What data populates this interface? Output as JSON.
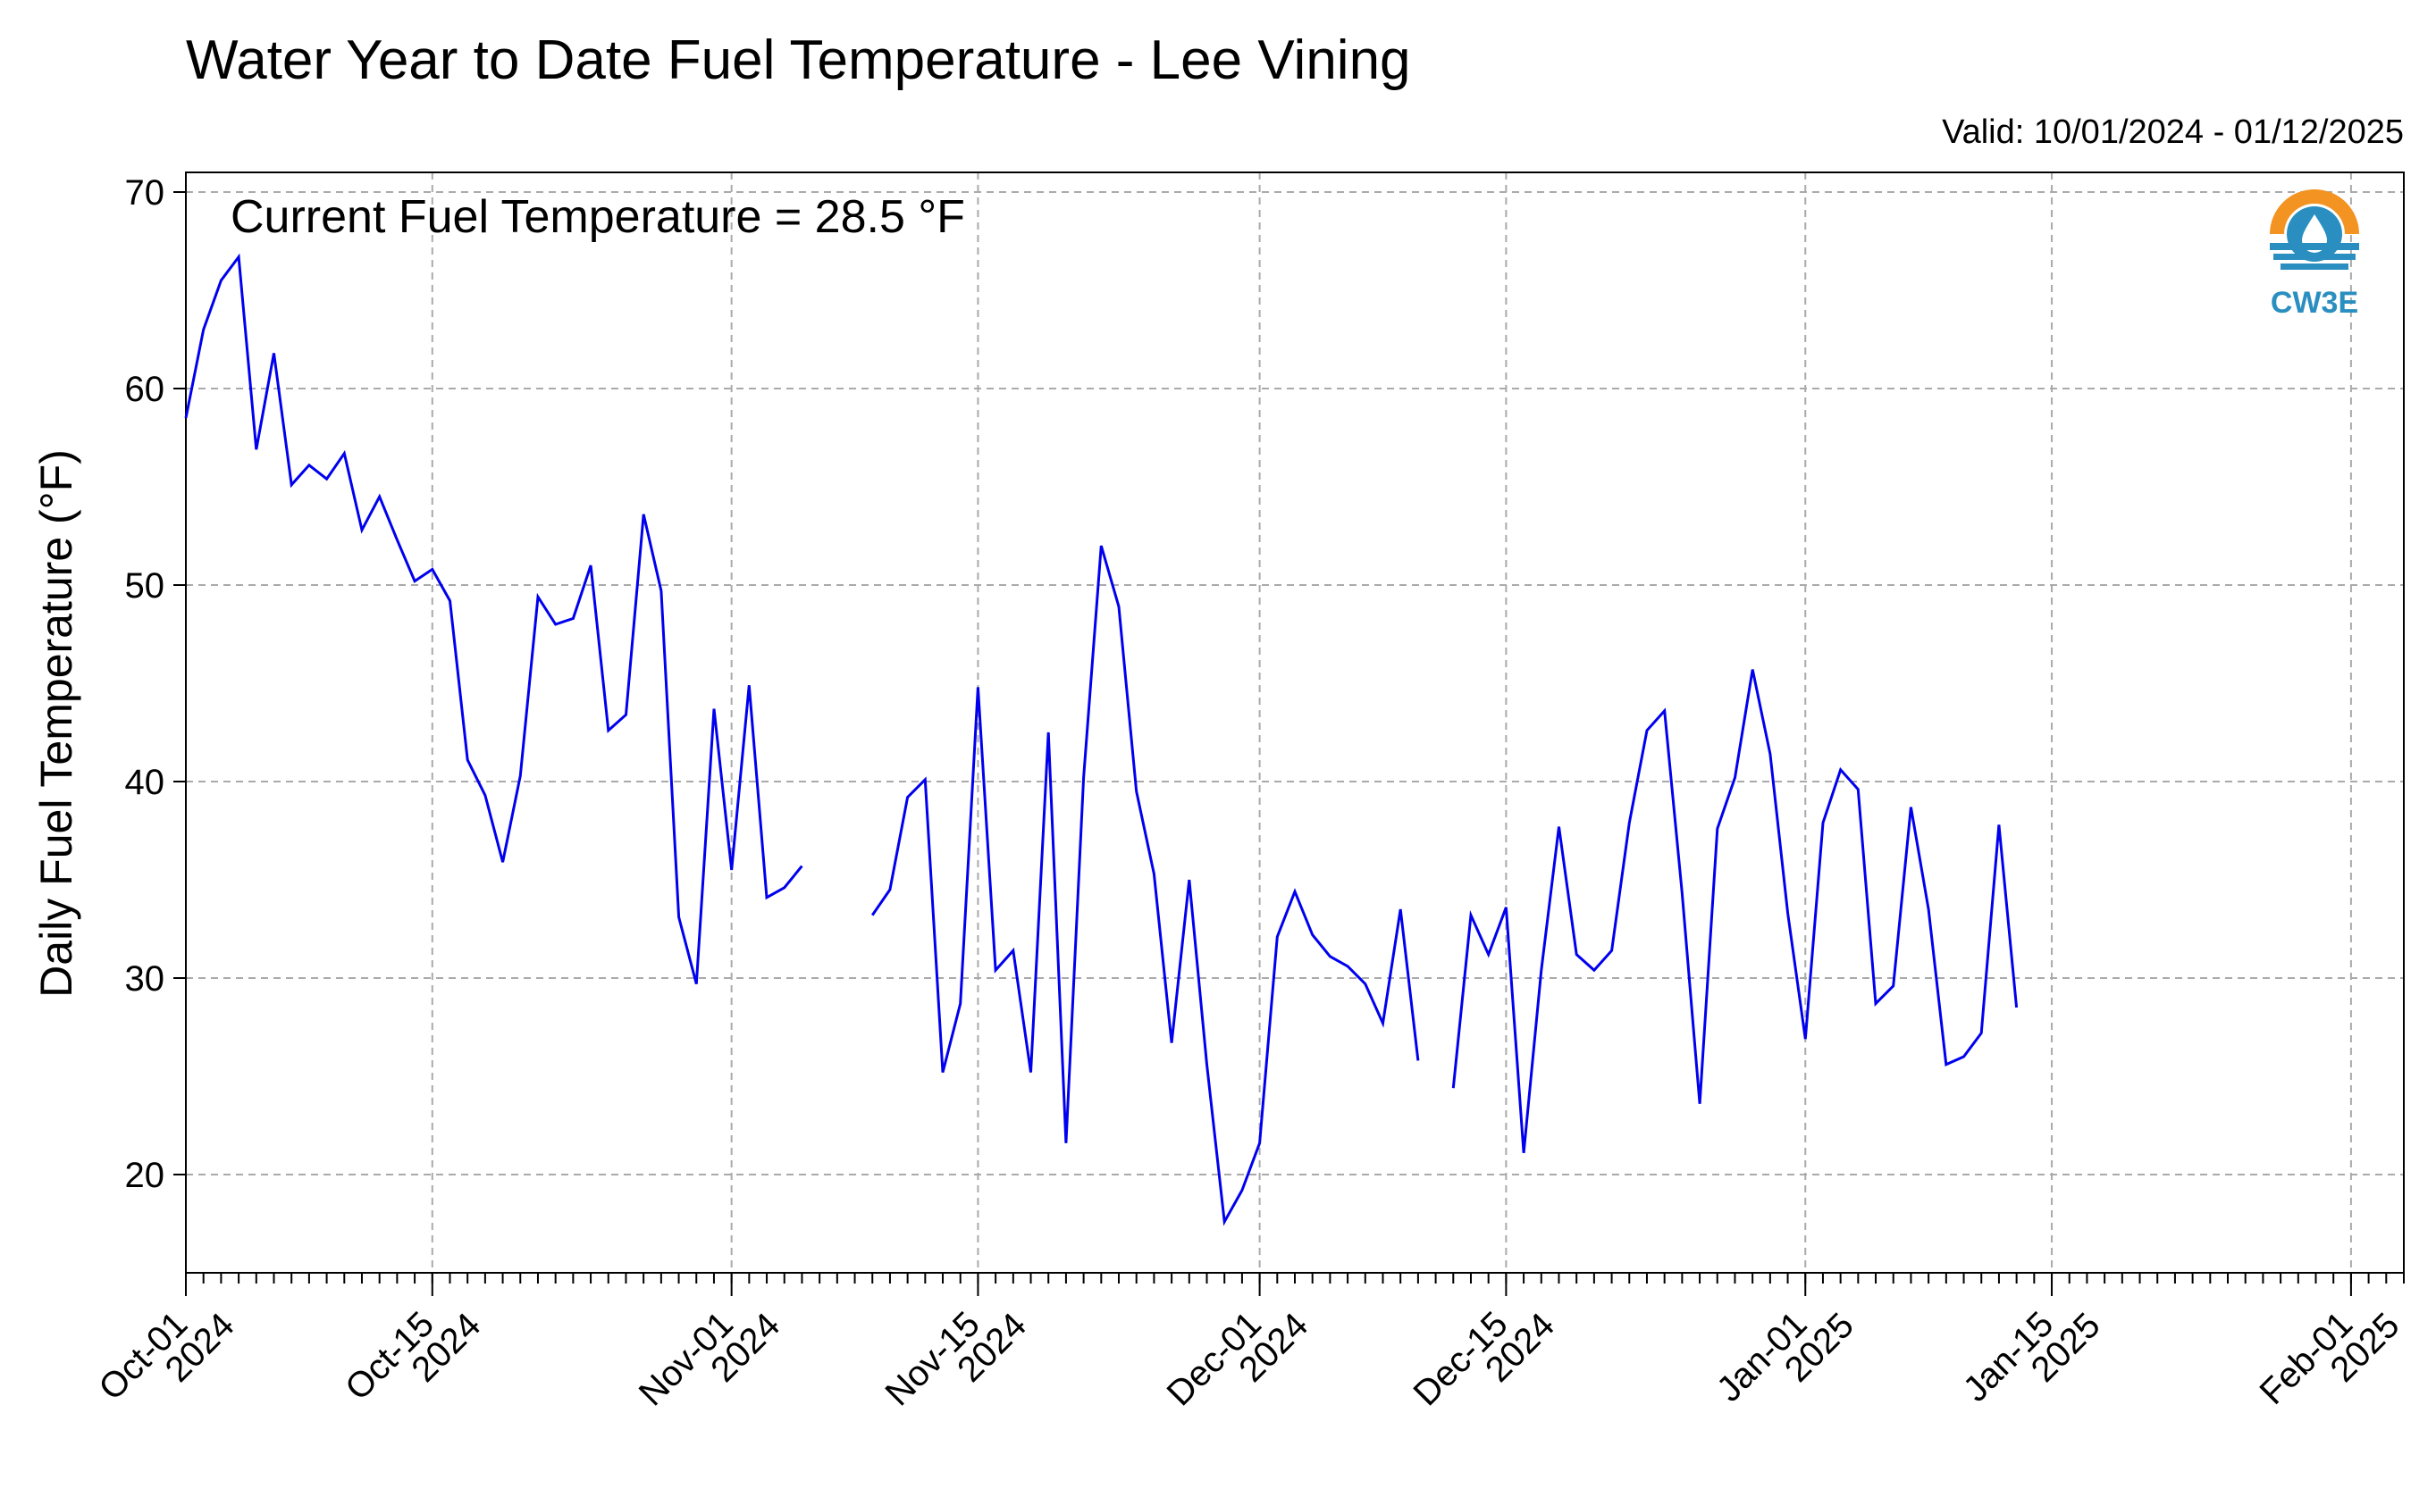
{
  "chart_data": {
    "type": "line",
    "title": "Water Year to Date Fuel Temperature - Lee Vining",
    "subtitle": "Valid: 10/01/2024 - 01/12/2025",
    "annotation": "Current Fuel Temperature = 28.5  °F",
    "xlabel": "",
    "ylabel": "Daily Fuel Temperature (°F)",
    "ylim": [
      15,
      71
    ],
    "xlim": [
      "2024-10-01",
      "2025-02-04"
    ],
    "yticks": [
      20,
      30,
      40,
      50,
      60,
      70
    ],
    "xticks": [
      {
        "date": "2024-10-01",
        "line1": "Oct-01",
        "line2": "2024"
      },
      {
        "date": "2024-10-15",
        "line1": "Oct-15",
        "line2": "2024"
      },
      {
        "date": "2024-11-01",
        "line1": "Nov-01",
        "line2": "2024"
      },
      {
        "date": "2024-11-15",
        "line1": "Nov-15",
        "line2": "2024"
      },
      {
        "date": "2024-12-01",
        "line1": "Dec-01",
        "line2": "2024"
      },
      {
        "date": "2024-12-15",
        "line1": "Dec-15",
        "line2": "2024"
      },
      {
        "date": "2025-01-01",
        "line1": "Jan-01",
        "line2": "2025"
      },
      {
        "date": "2025-01-15",
        "line1": "Jan-15",
        "line2": "2025"
      },
      {
        "date": "2025-02-01",
        "line1": "Feb-01",
        "line2": "2025"
      }
    ],
    "grid": true,
    "line_color": "#0000ee",
    "start_date": "2024-10-01",
    "values": [
      58.5,
      63.0,
      65.5,
      66.7,
      56.9,
      61.8,
      55.1,
      56.1,
      55.4,
      56.7,
      52.8,
      54.5,
      52.3,
      50.2,
      50.8,
      49.2,
      41.1,
      39.3,
      35.9,
      40.3,
      49.4,
      48.0,
      48.3,
      51.0,
      42.6,
      43.4,
      53.6,
      49.7,
      33.1,
      29.7,
      43.7,
      35.5,
      44.9,
      34.1,
      34.6,
      35.7,
      null,
      null,
      null,
      33.2,
      34.5,
      39.2,
      40.1,
      25.2,
      28.7,
      44.8,
      30.4,
      31.4,
      25.2,
      42.5,
      21.6,
      40.2,
      52.0,
      48.9,
      39.5,
      35.3,
      26.7,
      35.0,
      25.6,
      17.6,
      19.2,
      21.6,
      32.1,
      34.4,
      32.2,
      31.1,
      30.6,
      29.7,
      27.7,
      33.5,
      25.8,
      null,
      24.4,
      33.2,
      31.2,
      33.6,
      21.1,
      30.4,
      37.7,
      31.2,
      30.4,
      31.4,
      37.9,
      42.6,
      43.6,
      34.3,
      23.6,
      37.6,
      40.2,
      45.7,
      41.4,
      33.3,
      26.9,
      37.9,
      40.6,
      39.6,
      28.7,
      29.6,
      38.7,
      33.5,
      25.6,
      26.0,
      27.2,
      37.8,
      28.5
    ]
  },
  "logo": {
    "text": "CW3E",
    "colors": {
      "orange": "#f39321",
      "blue": "#2a8fc0",
      "white": "#ffffff"
    }
  }
}
